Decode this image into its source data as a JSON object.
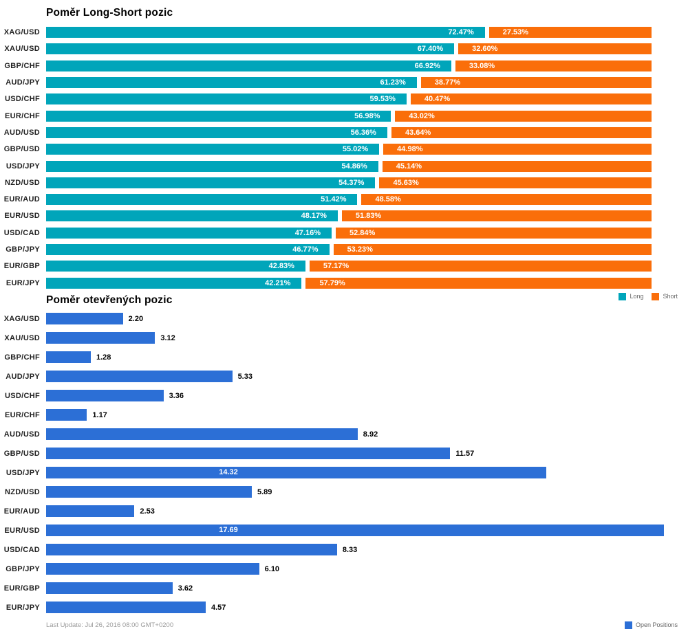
{
  "footer": {
    "last_update": "Last Update: Jul 26, 2016 08:00 GMT+0200"
  },
  "chart_data": [
    {
      "type": "bar",
      "orientation": "horizontal",
      "stacked": true,
      "title": "Poměr Long-Short pozic",
      "categories": [
        "XAG/USD",
        "XAU/USD",
        "GBP/CHF",
        "AUD/JPY",
        "USD/CHF",
        "EUR/CHF",
        "AUD/USD",
        "GBP/USD",
        "USD/JPY",
        "NZD/USD",
        "EUR/AUD",
        "EUR/USD",
        "USD/CAD",
        "GBP/JPY",
        "EUR/GBP",
        "EUR/JPY"
      ],
      "series": [
        {
          "name": "Long",
          "color": "#00A5BA",
          "values": [
            72.47,
            67.4,
            66.92,
            61.23,
            59.53,
            56.98,
            56.36,
            55.02,
            54.86,
            54.37,
            51.42,
            48.17,
            47.16,
            46.77,
            42.83,
            42.21
          ]
        },
        {
          "name": "Short",
          "color": "#FA6E0A",
          "values": [
            27.53,
            32.6,
            33.08,
            38.77,
            40.47,
            43.02,
            43.64,
            44.98,
            45.14,
            45.63,
            48.58,
            51.83,
            52.84,
            53.23,
            57.17,
            57.79
          ]
        }
      ],
      "value_format": "percent",
      "xlim": [
        0,
        100
      ],
      "grid": false,
      "legend_position": "bottom-right",
      "data_labels": "inside"
    },
    {
      "type": "bar",
      "orientation": "horizontal",
      "stacked": false,
      "title": "Poměr otevřených pozic",
      "categories": [
        "XAG/USD",
        "XAU/USD",
        "GBP/CHF",
        "AUD/JPY",
        "USD/CHF",
        "EUR/CHF",
        "AUD/USD",
        "GBP/USD",
        "USD/JPY",
        "NZD/USD",
        "EUR/AUD",
        "EUR/USD",
        "USD/CAD",
        "GBP/JPY",
        "EUR/GBP",
        "EUR/JPY"
      ],
      "series": [
        {
          "name": "Open Positions",
          "color": "#2C6FD6",
          "values": [
            2.2,
            3.12,
            1.28,
            5.33,
            3.36,
            1.17,
            8.92,
            11.57,
            14.32,
            5.89,
            2.53,
            17.69,
            8.33,
            6.1,
            3.62,
            4.57
          ]
        }
      ],
      "value_format": "decimal-2",
      "xlim": [
        0,
        17.69
      ],
      "grid": false,
      "legend_position": "bottom-right",
      "data_labels": "outside, inside when bar exceeds ~70% of axis"
    }
  ]
}
